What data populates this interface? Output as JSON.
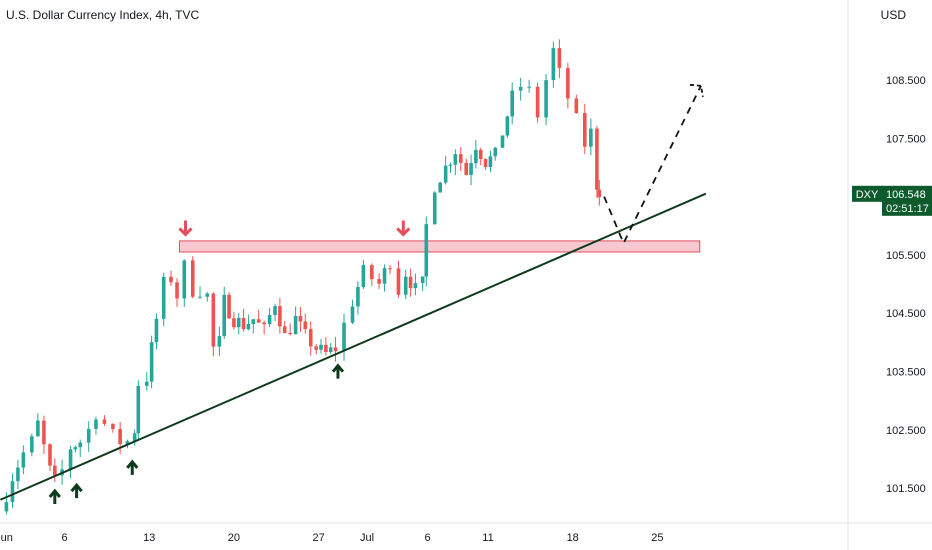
{
  "header": {
    "title": "U.S. Dollar Currency Index, 4h, TVC",
    "currency": "USD"
  },
  "colors": {
    "up": "#26a69a",
    "down": "#ef5350",
    "trendline": "#0d3b1c",
    "zone_fill": "#f4b6bf",
    "zone_stroke": "#e0505c",
    "arrow_down": "#e0505c",
    "arrow_up": "#0d3b1c",
    "price_tag": "#0d5a2c"
  },
  "price_tag": {
    "symbol": "DXY",
    "price": "106.548",
    "countdown": "02:51:17"
  },
  "chart_data": {
    "type": "candlestick",
    "instrument": "DXY",
    "timeframe": "4h",
    "y_ticks": [
      "101.500",
      "102.500",
      "103.500",
      "104.500",
      "105.500",
      "106.548",
      "107.500",
      "108.500"
    ],
    "ylim": [
      101.0,
      109.2
    ],
    "x_ticks": [
      {
        "label": "Jun",
        "day": 0
      },
      {
        "label": "6",
        "day": 5
      },
      {
        "label": "13",
        "day": 12
      },
      {
        "label": "20",
        "day": 19
      },
      {
        "label": "27",
        "day": 26
      },
      {
        "label": "Jul",
        "day": 30
      },
      {
        "label": "6",
        "day": 35
      },
      {
        "label": "11",
        "day": 40
      },
      {
        "label": "18",
        "day": 47
      },
      {
        "label": "25",
        "day": 54
      }
    ],
    "anchors": [
      [
        -0.3,
        101.1
      ],
      [
        0.7,
        101.7
      ],
      [
        1.6,
        102.1
      ],
      [
        2.3,
        102.3
      ],
      [
        2.8,
        102.6
      ],
      [
        3.3,
        102.2
      ],
      [
        3.8,
        101.8
      ],
      [
        4.2,
        101.6
      ],
      [
        4.8,
        101.8
      ],
      [
        5.5,
        102.2
      ],
      [
        6.3,
        102.3
      ],
      [
        7.0,
        102.5
      ],
      [
        7.6,
        102.8
      ],
      [
        8.3,
        102.6
      ],
      [
        9.0,
        102.4
      ],
      [
        9.6,
        102.3
      ],
      [
        10.2,
        102.3
      ],
      [
        10.8,
        102.5
      ],
      [
        11.1,
        103.3
      ],
      [
        11.8,
        103.4
      ],
      [
        12.6,
        104.4
      ],
      [
        13.2,
        105.0
      ],
      [
        13.8,
        105.1
      ],
      [
        14.3,
        104.8
      ],
      [
        14.9,
        105.3
      ],
      [
        15.6,
        104.9
      ],
      [
        16.2,
        104.9
      ],
      [
        16.8,
        104.8
      ],
      [
        17.3,
        103.9
      ],
      [
        17.8,
        104.0
      ],
      [
        18.2,
        104.7
      ],
      [
        19.0,
        104.4
      ],
      [
        19.8,
        104.3
      ],
      [
        20.6,
        104.4
      ],
      [
        21.5,
        104.2
      ],
      [
        22.4,
        104.7
      ],
      [
        23.2,
        104.1
      ],
      [
        24.1,
        104.4
      ],
      [
        24.9,
        104.1
      ],
      [
        25.8,
        103.9
      ],
      [
        26.6,
        103.8
      ],
      [
        27.4,
        103.9
      ],
      [
        28.1,
        104.3
      ],
      [
        28.8,
        104.7
      ],
      [
        29.7,
        105.2
      ],
      [
        30.4,
        105.1
      ],
      [
        31.0,
        105.0
      ],
      [
        31.9,
        105.4
      ],
      [
        32.6,
        104.9
      ],
      [
        33.2,
        105.2
      ],
      [
        34.0,
        104.9
      ],
      [
        34.6,
        105.0
      ],
      [
        34.9,
        106.0
      ],
      [
        35.6,
        106.7
      ],
      [
        36.5,
        107.0
      ],
      [
        37.3,
        107.3
      ],
      [
        38.2,
        106.9
      ],
      [
        39.0,
        107.4
      ],
      [
        39.8,
        107.1
      ],
      [
        40.6,
        107.2
      ],
      [
        41.2,
        107.6
      ],
      [
        42.0,
        108.2
      ],
      [
        42.7,
        108.4
      ],
      [
        43.4,
        108.3
      ],
      [
        44.1,
        107.9
      ],
      [
        44.8,
        108.5
      ],
      [
        45.4,
        109.0
      ],
      [
        45.9,
        108.6
      ],
      [
        46.6,
        108.2
      ],
      [
        47.3,
        107.8
      ],
      [
        48.0,
        107.4
      ],
      [
        48.5,
        107.6
      ],
      [
        49.0,
        106.7
      ],
      [
        49.2,
        106.6
      ]
    ],
    "trendline": {
      "start": {
        "day": -0.3,
        "price": 101.3
      },
      "end": {
        "day": 58.0,
        "price": 106.55
      }
    },
    "resistance_zone": {
      "day_start": 14.5,
      "day_end": 57.5,
      "price_low": 105.55,
      "price_high": 105.74
    },
    "projection": [
      {
        "day": 49.6,
        "price": 106.5
      },
      {
        "day": 51.2,
        "price": 105.7
      },
      {
        "day": 57.6,
        "price": 108.4
      }
    ],
    "down_arrows": [
      {
        "day": 15.0,
        "price": 105.85
      },
      {
        "day": 33.0,
        "price": 105.85
      }
    ],
    "up_arrows": [
      {
        "day": 4.2,
        "price": 101.45
      },
      {
        "day": 6.0,
        "price": 101.55
      },
      {
        "day": 10.6,
        "price": 101.95
      },
      {
        "day": 27.6,
        "price": 103.6
      }
    ]
  }
}
